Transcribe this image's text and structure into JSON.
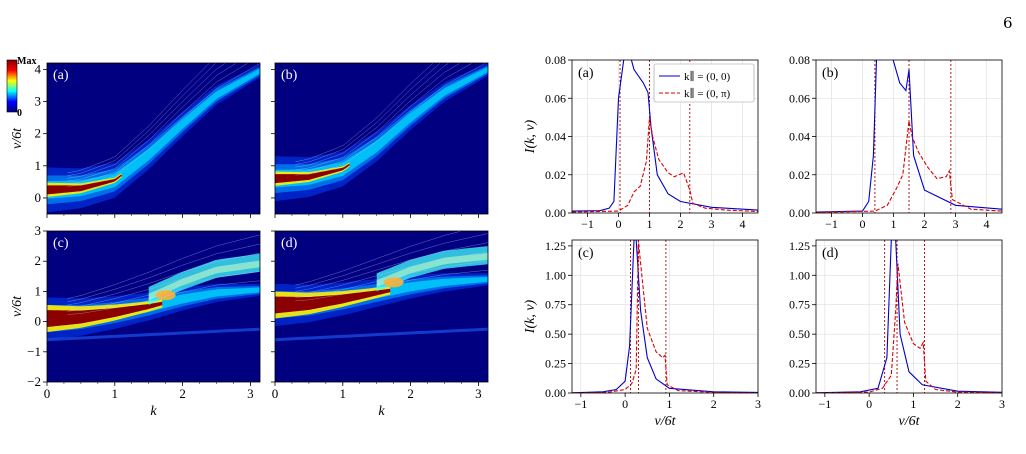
{
  "page_number": "6",
  "chart_data": [
    {
      "type": "heatmap",
      "panel": "(a)",
      "xlabel": "",
      "ylabel": "ν/6t",
      "xlim": [
        0,
        3.14159
      ],
      "ylim": [
        -0.5,
        4.2
      ],
      "x_ticks": [
        "0",
        "1",
        "2",
        "3"
      ],
      "y_ticks": [
        "0",
        "1",
        "2",
        "3",
        "4"
      ],
      "colorbar": {
        "max_label": "Max",
        "min_label": "0",
        "colormap": [
          "#00007f",
          "#0000ff",
          "#00ffff",
          "#ffff00",
          "#ff0000",
          "#7f0000"
        ]
      },
      "band_center_nu": {
        "k": [
          0,
          0.5,
          1.0,
          1.5,
          2.0,
          2.5,
          3.14159
        ],
        "nu": [
          0.25,
          0.3,
          0.55,
          1.35,
          2.3,
          3.2,
          3.95
        ]
      }
    },
    {
      "type": "heatmap",
      "panel": "(b)",
      "xlabel": "",
      "ylabel": "",
      "xlim": [
        0,
        3.14159
      ],
      "ylim": [
        -0.5,
        4.2
      ],
      "x_ticks": [
        "0",
        "1",
        "2",
        "3"
      ],
      "y_ticks": [
        "0",
        "1",
        "2",
        "3",
        "4"
      ],
      "band_center_nu": {
        "k": [
          0,
          0.5,
          1.0,
          1.5,
          2.0,
          2.5,
          3.14159
        ],
        "nu": [
          0.6,
          0.65,
          0.9,
          1.6,
          2.5,
          3.3,
          4.0
        ]
      }
    },
    {
      "type": "heatmap",
      "panel": "(c)",
      "xlabel": "k",
      "ylabel": "ν/6t",
      "xlim": [
        0,
        3.14159
      ],
      "ylim": [
        -2,
        3
      ],
      "x_ticks": [
        "0",
        "1",
        "2",
        "3"
      ],
      "y_ticks": [
        "−2",
        "−1",
        "0",
        "1",
        "2",
        "3"
      ],
      "band_center_nu": {
        "k": [
          0,
          0.5,
          1.0,
          1.5,
          2.0,
          2.5,
          3.14159
        ],
        "nu": [
          0.1,
          0.15,
          0.3,
          0.5,
          0.75,
          0.95,
          1.05
        ]
      },
      "upper_band_nu": {
        "k": [
          1.5,
          2.0,
          2.5,
          3.14159
        ],
        "nu": [
          0.8,
          1.3,
          1.7,
          1.9
        ]
      }
    },
    {
      "type": "heatmap",
      "panel": "(d)",
      "xlabel": "k",
      "ylabel": "",
      "xlim": [
        0,
        3.14159
      ],
      "ylim": [
        -2,
        3
      ],
      "x_ticks": [
        "0",
        "1",
        "2",
        "3"
      ],
      "y_ticks": [
        "−2",
        "−1",
        "0",
        "1",
        "2",
        "3"
      ],
      "band_center_nu": {
        "k": [
          0,
          0.5,
          1.0,
          1.5,
          2.0,
          2.5,
          3.14159
        ],
        "nu": [
          0.55,
          0.6,
          0.75,
          0.95,
          1.15,
          1.3,
          1.4
        ]
      },
      "upper_band_nu": {
        "k": [
          1.5,
          2.0,
          2.5,
          3.14159
        ],
        "nu": [
          1.25,
          1.7,
          2.0,
          2.15
        ]
      }
    },
    {
      "type": "line",
      "panel": "(a)",
      "xlabel": "",
      "ylabel": "I(k, ν)",
      "xlim": [
        -1.5,
        4.5
      ],
      "ylim": [
        0,
        0.08
      ],
      "x_ticks": [
        -1,
        0,
        1,
        2,
        3,
        4
      ],
      "y_ticks": [
        0.0,
        0.02,
        0.04,
        0.06,
        0.08
      ],
      "y_tick_labels": [
        "0.00",
        "0.02",
        "0.04",
        "0.06",
        "0.08"
      ],
      "grid": true,
      "legend": {
        "placement": "top-right",
        "entries": [
          "k∥ = (0, 0)",
          "k∥ = (0, π)"
        ]
      },
      "series": [
        {
          "name": "k∥ = (0, 0)",
          "color": "#0000cc",
          "style": "solid",
          "x": [
            -1.5,
            -0.6,
            -0.3,
            -0.15,
            0.0,
            0.25,
            0.5,
            0.8,
            0.95,
            1.05,
            1.25,
            1.6,
            2.0,
            3.0,
            4.5
          ],
          "y": [
            0.001,
            0.0012,
            0.0025,
            0.006,
            0.06,
            0.09,
            0.075,
            0.068,
            0.063,
            0.045,
            0.02,
            0.01,
            0.006,
            0.003,
            0.0015
          ]
        },
        {
          "name": "k∥ = (0, π)",
          "color": "#dd0000",
          "style": "dashed",
          "x": [
            -1.5,
            0.0,
            0.3,
            0.5,
            0.7,
            0.9,
            1.0,
            1.1,
            1.3,
            1.6,
            1.8,
            2.1,
            2.3,
            2.4,
            2.8,
            3.5,
            4.5
          ],
          "y": [
            0.0005,
            0.001,
            0.004,
            0.011,
            0.014,
            0.027,
            0.05,
            0.04,
            0.028,
            0.021,
            0.019,
            0.021,
            0.012,
            0.005,
            0.0025,
            0.0015,
            0.0008
          ]
        }
      ],
      "vlines": [
        {
          "x": 0.05,
          "color": "#aa0000"
        },
        {
          "x": 1.0,
          "color": "#aa0000"
        },
        {
          "x": 2.3,
          "color": "#aa0000"
        }
      ]
    },
    {
      "type": "line",
      "panel": "(b)",
      "xlabel": "",
      "ylabel": "",
      "xlim": [
        -1.5,
        4.5
      ],
      "ylim": [
        0,
        0.08
      ],
      "x_ticks": [
        -1,
        0,
        1,
        2,
        3,
        4
      ],
      "y_ticks": [
        0.0,
        0.02,
        0.04,
        0.06,
        0.08
      ],
      "y_tick_labels": [
        "0.00",
        "0.02",
        "0.04",
        "0.06",
        "0.08"
      ],
      "grid": true,
      "series": [
        {
          "name": "k∥ = (0, 0)",
          "color": "#0000cc",
          "style": "solid",
          "x": [
            -1.5,
            0.0,
            0.2,
            0.35,
            0.45,
            0.6,
            0.9,
            1.2,
            1.4,
            1.5,
            1.65,
            2.0,
            3.0,
            4.5
          ],
          "y": [
            0.0005,
            0.001,
            0.006,
            0.03,
            0.08,
            0.09,
            0.085,
            0.068,
            0.064,
            0.075,
            0.03,
            0.012,
            0.004,
            0.002
          ]
        },
        {
          "name": "k∥ = (0, π)",
          "color": "#dd0000",
          "style": "dashed",
          "x": [
            -1.5,
            0.4,
            0.8,
            1.1,
            1.3,
            1.5,
            1.6,
            1.8,
            2.1,
            2.4,
            2.7,
            2.8,
            2.9,
            3.5,
            4.5
          ],
          "y": [
            0.0003,
            0.001,
            0.004,
            0.013,
            0.02,
            0.048,
            0.04,
            0.032,
            0.024,
            0.018,
            0.019,
            0.022,
            0.007,
            0.002,
            0.001
          ]
        }
      ],
      "vlines": [
        {
          "x": 0.4,
          "color": "#aa0000"
        },
        {
          "x": 1.5,
          "color": "#aa0000"
        },
        {
          "x": 2.85,
          "color": "#aa0000"
        }
      ]
    },
    {
      "type": "line",
      "panel": "(c)",
      "xlabel": "ν/6t",
      "ylabel": "I(k, ν)",
      "xlim": [
        -1.2,
        3
      ],
      "ylim": [
        0,
        1.3
      ],
      "x_ticks": [
        -1,
        0,
        1,
        2,
        3
      ],
      "y_ticks": [
        0.0,
        0.25,
        0.5,
        0.75,
        1.0,
        1.25
      ],
      "y_tick_labels": [
        "0.00",
        "0.25",
        "0.50",
        "0.75",
        "1.00",
        "1.25"
      ],
      "grid": true,
      "series": [
        {
          "name": "k∥ = (0, 0)",
          "color": "#0000cc",
          "style": "solid",
          "x": [
            -1.2,
            -0.5,
            -0.2,
            0.0,
            0.1,
            0.2,
            0.25,
            0.35,
            0.5,
            0.7,
            1.0,
            2.0,
            3.0
          ],
          "y": [
            0.002,
            0.01,
            0.03,
            0.1,
            0.4,
            1.3,
            1.3,
            0.7,
            0.3,
            0.12,
            0.04,
            0.01,
            0.005
          ]
        },
        {
          "name": "k∥ = (0, π)",
          "color": "#dd0000",
          "style": "dashed",
          "x": [
            -1.2,
            -0.4,
            0.0,
            0.15,
            0.25,
            0.3,
            0.35,
            0.5,
            0.7,
            0.85,
            0.9,
            0.95,
            1.2,
            2.0,
            3.0
          ],
          "y": [
            0.001,
            0.005,
            0.03,
            0.08,
            0.2,
            1.3,
            1.1,
            0.55,
            0.35,
            0.3,
            0.32,
            0.07,
            0.02,
            0.005,
            0.002
          ]
        }
      ],
      "vlines": [
        {
          "x": 0.12,
          "color": "#aa0000"
        },
        {
          "x": 0.3,
          "color": "#aa0000"
        },
        {
          "x": 0.92,
          "color": "#aa0000"
        }
      ]
    },
    {
      "type": "line",
      "panel": "(d)",
      "xlabel": "ν/6t",
      "ylabel": "",
      "xlim": [
        -1.2,
        3
      ],
      "ylim": [
        0,
        1.3
      ],
      "x_ticks": [
        -1,
        0,
        1,
        2,
        3
      ],
      "y_ticks": [
        0.0,
        0.25,
        0.5,
        0.75,
        1.0,
        1.25
      ],
      "y_tick_labels": [
        "0.00",
        "0.25",
        "0.50",
        "0.75",
        "1.00",
        "1.25"
      ],
      "grid": true,
      "series": [
        {
          "name": "k∥ = (0, 0)",
          "color": "#0000cc",
          "style": "solid",
          "x": [
            -1.2,
            -0.2,
            0.2,
            0.4,
            0.5,
            0.6,
            0.7,
            0.9,
            1.2,
            2.0,
            3.0
          ],
          "y": [
            0.002,
            0.01,
            0.04,
            0.3,
            1.3,
            1.3,
            0.5,
            0.18,
            0.07,
            0.015,
            0.006
          ]
        },
        {
          "name": "k∥ = (0, π)",
          "color": "#dd0000",
          "style": "dashed",
          "x": [
            -1.2,
            0.0,
            0.3,
            0.5,
            0.6,
            0.65,
            0.8,
            1.0,
            1.15,
            1.22,
            1.28,
            1.5,
            2.0,
            3.0
          ],
          "y": [
            0.001,
            0.008,
            0.04,
            0.15,
            0.7,
            1.1,
            0.6,
            0.42,
            0.38,
            0.43,
            0.1,
            0.03,
            0.008,
            0.003
          ]
        }
      ],
      "vlines": [
        {
          "x": 0.35,
          "color": "#aa0000"
        },
        {
          "x": 0.63,
          "color": "#aa0000"
        },
        {
          "x": 1.25,
          "color": "#aa0000"
        }
      ]
    }
  ]
}
